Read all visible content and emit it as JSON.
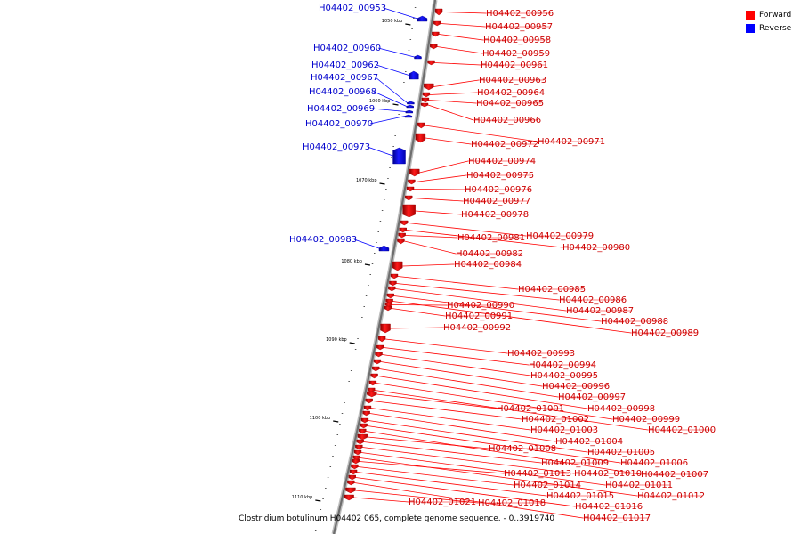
{
  "legend": {
    "forward_label": "Forward",
    "reverse_label": "Reverse",
    "forward_color": "#ff0000",
    "reverse_color": "#0000ff"
  },
  "caption": "Clostridium botulinum H04402 065, complete genome sequence. - 0..3919740",
  "axis_ticks": [
    "1050 kbp",
    "1060 kbp",
    "1070 kbp",
    "1080 kbp",
    "1090 kbp",
    "1100 kbp",
    "1110 kbp"
  ],
  "genes": [
    {
      "id": "H04402_00953",
      "strand": "reverse"
    },
    {
      "id": "H04402_00956",
      "strand": "forward"
    },
    {
      "id": "H04402_00957",
      "strand": "forward"
    },
    {
      "id": "H04402_00958",
      "strand": "forward"
    },
    {
      "id": "H04402_00959",
      "strand": "forward"
    },
    {
      "id": "H04402_00960",
      "strand": "reverse"
    },
    {
      "id": "H04402_00961",
      "strand": "forward"
    },
    {
      "id": "H04402_00962",
      "strand": "reverse"
    },
    {
      "id": "H04402_00963",
      "strand": "forward"
    },
    {
      "id": "H04402_00964",
      "strand": "forward"
    },
    {
      "id": "H04402_00965",
      "strand": "forward"
    },
    {
      "id": "H04402_00966",
      "strand": "forward"
    },
    {
      "id": "H04402_00967",
      "strand": "reverse"
    },
    {
      "id": "H04402_00968",
      "strand": "reverse"
    },
    {
      "id": "H04402_00969",
      "strand": "reverse"
    },
    {
      "id": "H04402_00970",
      "strand": "reverse"
    },
    {
      "id": "H04402_00971",
      "strand": "forward"
    },
    {
      "id": "H04402_00972",
      "strand": "forward"
    },
    {
      "id": "H04402_00973",
      "strand": "reverse"
    },
    {
      "id": "H04402_00974",
      "strand": "forward"
    },
    {
      "id": "H04402_00975",
      "strand": "forward"
    },
    {
      "id": "H04402_00976",
      "strand": "forward"
    },
    {
      "id": "H04402_00977",
      "strand": "forward"
    },
    {
      "id": "H04402_00978",
      "strand": "forward"
    },
    {
      "id": "H04402_00979",
      "strand": "forward"
    },
    {
      "id": "H04402_00980",
      "strand": "forward"
    },
    {
      "id": "H04402_00981",
      "strand": "forward"
    },
    {
      "id": "H04402_00982",
      "strand": "forward"
    },
    {
      "id": "H04402_00983",
      "strand": "reverse"
    },
    {
      "id": "H04402_00984",
      "strand": "forward"
    },
    {
      "id": "H04402_00985",
      "strand": "forward"
    },
    {
      "id": "H04402_00986",
      "strand": "forward"
    },
    {
      "id": "H04402_00987",
      "strand": "forward"
    },
    {
      "id": "H04402_00988",
      "strand": "forward"
    },
    {
      "id": "H04402_00989",
      "strand": "forward"
    },
    {
      "id": "H04402_00990",
      "strand": "forward"
    },
    {
      "id": "H04402_00991",
      "strand": "forward"
    },
    {
      "id": "H04402_00992",
      "strand": "forward"
    },
    {
      "id": "H04402_00993",
      "strand": "forward"
    },
    {
      "id": "H04402_00994",
      "strand": "forward"
    },
    {
      "id": "H04402_00995",
      "strand": "forward"
    },
    {
      "id": "H04402_00996",
      "strand": "forward"
    },
    {
      "id": "H04402_00997",
      "strand": "forward"
    },
    {
      "id": "H04402_00998",
      "strand": "forward"
    },
    {
      "id": "H04402_00999",
      "strand": "forward"
    },
    {
      "id": "H04402_01000",
      "strand": "forward"
    },
    {
      "id": "H04402_01001",
      "strand": "forward"
    },
    {
      "id": "H04402_01002",
      "strand": "forward"
    },
    {
      "id": "H04402_01003",
      "strand": "forward"
    },
    {
      "id": "H04402_01004",
      "strand": "forward"
    },
    {
      "id": "H04402_01005",
      "strand": "forward"
    },
    {
      "id": "H04402_01006",
      "strand": "forward"
    },
    {
      "id": "H04402_01007",
      "strand": "forward"
    },
    {
      "id": "H04402_01008",
      "strand": "forward"
    },
    {
      "id": "H04402_01009",
      "strand": "forward"
    },
    {
      "id": "H04402_01010",
      "strand": "forward"
    },
    {
      "id": "H04402_01011",
      "strand": "forward"
    },
    {
      "id": "H04402_01012",
      "strand": "forward"
    },
    {
      "id": "H04402_01013",
      "strand": "forward"
    },
    {
      "id": "H04402_01014",
      "strand": "forward"
    },
    {
      "id": "H04402_01015",
      "strand": "forward"
    },
    {
      "id": "H04402_01016",
      "strand": "forward"
    },
    {
      "id": "H04402_01017",
      "strand": "forward"
    },
    {
      "id": "H04402_01018",
      "strand": "forward"
    },
    {
      "id": "H04402_01021",
      "strand": "forward"
    }
  ]
}
